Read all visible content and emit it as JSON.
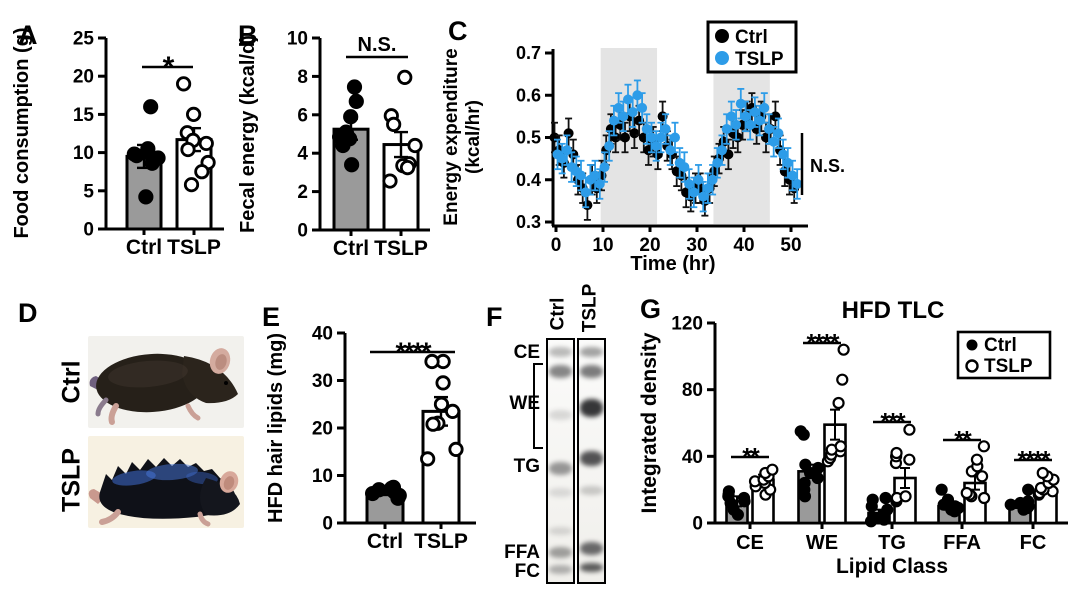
{
  "colors": {
    "gray_bar": "#9a9a9a",
    "blue": "#2d9ce8",
    "shade": "#e4e4e4",
    "black": "#000000"
  },
  "panels": {
    "A": "A",
    "B": "B",
    "C": "C",
    "D": "D",
    "E": "E",
    "F": "F",
    "G": "G"
  },
  "photos": {
    "label_ctrl": "Ctrl",
    "label_tslp": "TSLP"
  },
  "gel": {
    "lanes": [
      "Ctrl",
      "TSLP"
    ],
    "markers": [
      "CE",
      "WE",
      "TG",
      "FFA",
      "FC"
    ],
    "bands": {
      "Ctrl": [
        [
          0.05,
          10,
          0.28
        ],
        [
          0.13,
          13,
          0.5
        ],
        [
          0.31,
          10,
          0.14
        ],
        [
          0.53,
          13,
          0.42
        ],
        [
          0.63,
          9,
          0.12
        ],
        [
          0.79,
          8,
          0.14
        ],
        [
          0.88,
          11,
          0.38
        ],
        [
          0.95,
          9,
          0.3
        ]
      ],
      "TSLP": [
        [
          0.05,
          10,
          0.38
        ],
        [
          0.13,
          13,
          0.55
        ],
        [
          0.28,
          18,
          0.85
        ],
        [
          0.49,
          15,
          0.72
        ],
        [
          0.62,
          9,
          0.2
        ],
        [
          0.86,
          13,
          0.62
        ],
        [
          0.94,
          9,
          0.68
        ]
      ]
    }
  },
  "chart_data": [
    {
      "id": "A",
      "type": "bar",
      "ylabel": "Food consumption (g)",
      "categories": [
        "Ctrl",
        "TSLP"
      ],
      "values": [
        9.5,
        11.7
      ],
      "errors": [
        1.5,
        1.5
      ],
      "points": [
        [
          16,
          10.5,
          10,
          9.8,
          9.6,
          9.3,
          8.6,
          4.2
        ],
        [
          19,
          15,
          12.6,
          11.6,
          11.2,
          10.4,
          8.7,
          7.5,
          5.8
        ]
      ],
      "ylim": [
        0,
        25
      ],
      "yticks": [
        0,
        5,
        10,
        15,
        20,
        25
      ],
      "ytick_labels": [
        "0",
        "5",
        "10",
        "15",
        "20",
        "25"
      ],
      "significance": "*"
    },
    {
      "id": "B",
      "type": "bar",
      "ylabel": "Fecal energy (kcal/d)",
      "categories": [
        "Ctrl",
        "TSLP"
      ],
      "values": [
        5.25,
        4.45
      ],
      "errors": [
        0.55,
        0.65
      ],
      "points": [
        [
          7.45,
          6.7,
          5.9,
          5.1,
          5.0,
          4.85,
          4.75,
          4.4,
          3.4
        ],
        [
          7.95,
          5.95,
          5.5,
          4.4,
          3.45,
          3.35,
          3.25,
          2.55
        ]
      ],
      "ylim": [
        0,
        10
      ],
      "yticks": [
        0,
        2,
        4,
        6,
        8,
        10
      ],
      "ytick_labels": [
        "0",
        "2",
        "4",
        "6",
        "8",
        "10"
      ],
      "significance": "N.S."
    },
    {
      "id": "C",
      "type": "scatter",
      "ylabel_lines": [
        "Energy expenditure",
        "(kcal/hr)"
      ],
      "xlabel": "Time (hr)",
      "xlim": [
        0,
        52
      ],
      "xticks": [
        0,
        10,
        20,
        30,
        40,
        50
      ],
      "xtick_labels": [
        "0",
        "10",
        "20",
        "30",
        "40",
        "50"
      ],
      "ylim": [
        0.3,
        0.7
      ],
      "yticks": [
        0.3,
        0.4,
        0.5,
        0.6,
        0.7
      ],
      "ytick_labels": [
        "0.3",
        "0.4",
        "0.5",
        "0.6",
        "0.7"
      ],
      "shaded_x": [
        [
          9.5,
          21.5
        ],
        [
          33.5,
          45.5
        ]
      ],
      "error": 0.035,
      "annotation": "N.S.",
      "legend": [
        "Ctrl",
        "TSLP"
      ],
      "x": [
        0,
        1,
        2,
        3,
        4,
        5,
        6,
        7,
        8,
        9,
        10,
        11,
        12,
        13,
        14,
        15,
        16,
        17,
        18,
        19,
        20,
        21,
        22,
        23,
        24,
        25,
        26,
        27,
        28,
        29,
        30,
        31,
        32,
        33,
        34,
        35,
        36,
        37,
        38,
        39,
        40,
        41,
        42,
        43,
        44,
        45,
        46,
        47,
        48,
        49,
        50,
        51
      ],
      "series": [
        {
          "name": "Ctrl",
          "color": "#000000",
          "y": [
            0.5,
            0.47,
            0.44,
            0.51,
            0.46,
            0.4,
            0.38,
            0.34,
            0.4,
            0.38,
            0.41,
            0.47,
            0.52,
            0.5,
            0.53,
            0.5,
            0.55,
            0.51,
            0.54,
            0.5,
            0.47,
            0.49,
            0.46,
            0.55,
            0.48,
            0.46,
            0.42,
            0.41,
            0.37,
            0.36,
            0.38,
            0.38,
            0.35,
            0.38,
            0.42,
            0.45,
            0.49,
            0.46,
            0.51,
            0.5,
            0.53,
            0.55,
            0.57,
            0.52,
            0.55,
            0.5,
            0.52,
            0.55,
            0.47,
            0.42,
            0.4,
            0.38
          ]
        },
        {
          "name": "TSLP",
          "color": "#2d9ce8",
          "y": [
            0.46,
            0.45,
            0.47,
            0.43,
            0.42,
            0.41,
            0.37,
            0.4,
            0.41,
            0.39,
            0.43,
            0.48,
            0.54,
            0.57,
            0.55,
            0.59,
            0.56,
            0.6,
            0.57,
            0.52,
            0.5,
            0.48,
            0.5,
            0.52,
            0.47,
            0.5,
            0.44,
            0.43,
            0.39,
            0.37,
            0.4,
            0.36,
            0.38,
            0.4,
            0.44,
            0.47,
            0.52,
            0.55,
            0.53,
            0.58,
            0.55,
            0.53,
            0.56,
            0.54,
            0.57,
            0.52,
            0.49,
            0.51,
            0.46,
            0.44,
            0.41,
            0.39
          ]
        }
      ]
    },
    {
      "id": "E",
      "type": "bar",
      "ylabel": "HFD hair lipids (mg)",
      "categories": [
        "Ctrl",
        "TSLP"
      ],
      "values": [
        6.5,
        23.5
      ],
      "errors": [
        0.6,
        3.0
      ],
      "points": [
        [
          5.2,
          5.8,
          6.2,
          6.5,
          6.8,
          7.0,
          7.3,
          7.5
        ],
        [
          34,
          34,
          29.5,
          25,
          23.5,
          21,
          20.8,
          15.5,
          13.5
        ]
      ],
      "ylim": [
        0,
        40
      ],
      "yticks": [
        0,
        10,
        20,
        30,
        40
      ],
      "ytick_labels": [
        "0",
        "10",
        "20",
        "30",
        "40"
      ],
      "significance": "****"
    },
    {
      "id": "G",
      "type": "grouped_bar",
      "title": "HFD TLC",
      "ylabel": "Integrated density",
      "xlabel": "Lipid Class",
      "categories": [
        "CE",
        "WE",
        "TG",
        "FFA",
        "FC"
      ],
      "ylim": [
        0,
        120
      ],
      "yticks": [
        0,
        40,
        80,
        120
      ],
      "ytick_labels": [
        "0",
        "40",
        "80",
        "120"
      ],
      "legend": [
        "Ctrl",
        "TSLP"
      ],
      "series": [
        {
          "name": "Ctrl",
          "values": [
            13,
            31,
            6,
            10,
            11
          ],
          "errors": [
            3,
            4,
            2,
            2,
            2
          ],
          "points": [
            [
              5,
              8,
              12,
              13,
              15,
              16,
              17,
              19
            ],
            [
              16,
              20,
              24,
              27,
              30,
              33,
              35,
              53,
              55
            ],
            [
              1,
              2,
              3,
              5,
              8,
              10,
              14,
              15
            ],
            [
              7,
              8,
              9,
              10,
              11,
              13,
              14,
              20
            ],
            [
              8,
              9,
              10,
              11,
              12,
              13,
              20
            ]
          ]
        },
        {
          "name": "TSLP",
          "values": [
            26,
            59,
            27,
            24,
            20
          ],
          "errors": [
            3,
            9,
            6,
            4,
            2
          ],
          "points": [
            [
              17,
              20,
              22,
              24,
              25,
              26,
              28,
              30,
              32
            ],
            [
              37,
              39,
              41,
              43,
              44,
              46,
              72,
              86,
              104
            ],
            [
              13,
              14,
              15,
              16,
              36,
              38,
              40,
              42,
              56
            ],
            [
              15,
              16,
              17,
              18,
              28,
              31,
              34,
              38,
              46
            ],
            [
              17,
              18,
              19,
              20,
              21,
              24,
              26,
              28,
              30
            ]
          ]
        }
      ],
      "significance": [
        "**",
        "****",
        "***",
        "**",
        "****"
      ]
    }
  ]
}
